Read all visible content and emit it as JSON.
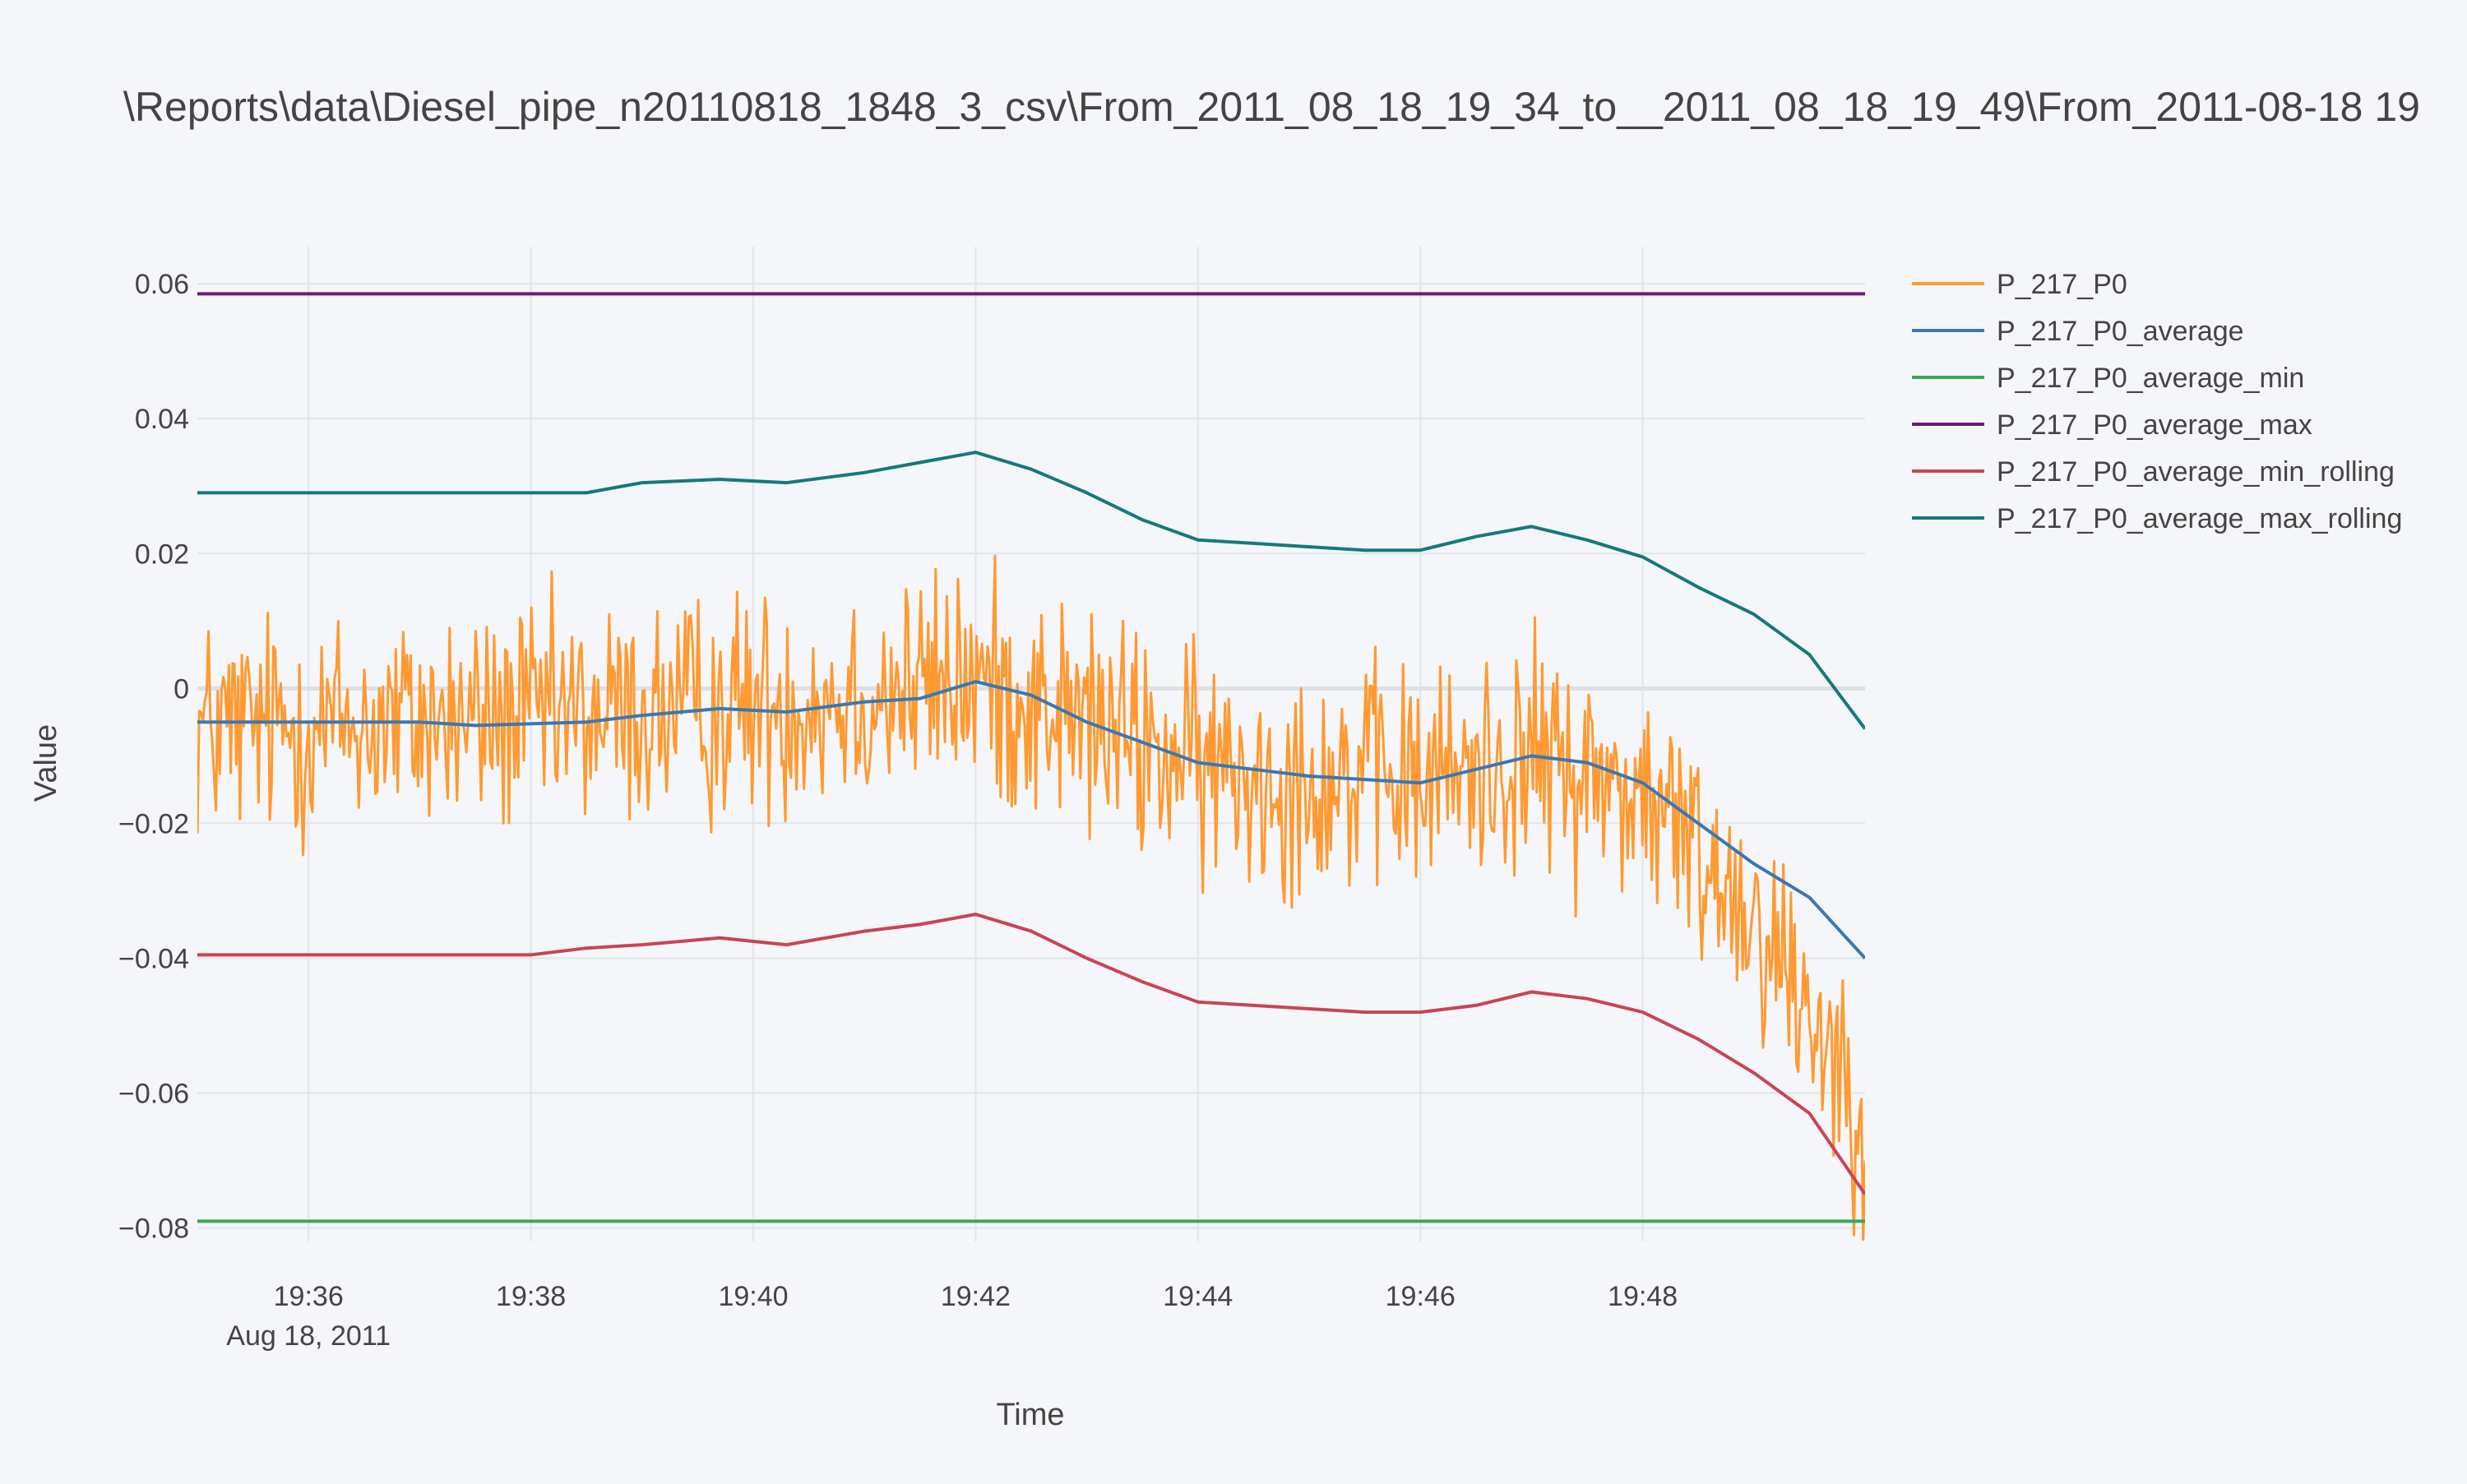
{
  "chart_data": {
    "type": "line",
    "title": "\\Reports\\data\\Diesel_pipe_n20110818_1848_3_csv\\From_2011_08_18_19_34_to__2011_08_18_19_49\\From_2011-08-18 19",
    "xlabel": "Time",
    "ylabel": "Value",
    "x_range": [
      "2011-08-18 19:35:00",
      "2011-08-18 19:50:00"
    ],
    "xlim_minutes": [
      "19:35",
      "19:50"
    ],
    "ylim": [
      -0.082,
      0.0655
    ],
    "x_ticks": [
      {
        "time": "19:36",
        "label": "19:36",
        "sublabel": "Aug 18, 2011"
      },
      {
        "time": "19:38",
        "label": "19:38"
      },
      {
        "time": "19:40",
        "label": "19:40"
      },
      {
        "time": "19:42",
        "label": "19:42"
      },
      {
        "time": "19:44",
        "label": "19:44"
      },
      {
        "time": "19:46",
        "label": "19:46"
      },
      {
        "time": "19:48",
        "label": "19:48"
      }
    ],
    "y_ticks": [
      {
        "value": 0.06,
        "label": "0.06"
      },
      {
        "value": 0.04,
        "label": "0.04"
      },
      {
        "value": 0.02,
        "label": "0.02"
      },
      {
        "value": 0,
        "label": "0"
      },
      {
        "value": -0.02,
        "label": "−0.02"
      },
      {
        "value": -0.04,
        "label": "−0.04"
      },
      {
        "value": -0.06,
        "label": "−0.06"
      },
      {
        "value": -0.08,
        "label": "−0.08"
      }
    ],
    "grid": true,
    "legend_position": "right",
    "series": [
      {
        "name": "P_217_P0",
        "color": "#ff9a32",
        "style": "noisy",
        "sample_count": 900,
        "noise_amplitude": 0.013,
        "trend": {
          "t": [
            "19:35",
            "19:37",
            "19:39",
            "19:41",
            "19:42",
            "19:43",
            "19:44",
            "19:45",
            "19:46",
            "19:47",
            "19:48",
            "19:49",
            "19:50"
          ],
          "y": [
            -0.006,
            -0.005,
            -0.004,
            -0.001,
            0.001,
            -0.005,
            -0.012,
            -0.013,
            -0.014,
            -0.01,
            -0.016,
            -0.033,
            -0.062
          ]
        }
      },
      {
        "name": "P_217_P0_average",
        "color": "#3a78b3",
        "t": [
          "19:35",
          "19:36",
          "19:37",
          "19:37.5",
          "19:38.5",
          "19:39",
          "19:39.7",
          "19:40.3",
          "19:41",
          "19:41.5",
          "19:42",
          "19:42.5",
          "19:43",
          "19:43.5",
          "19:44",
          "19:44.5",
          "19:45",
          "19:45.5",
          "19:46",
          "19:46.5",
          "19:47",
          "19:47.5",
          "19:48",
          "19:48.5",
          "19:49",
          "19:49.5",
          "19:50"
        ],
        "y": [
          -0.005,
          -0.005,
          -0.005,
          -0.0055,
          -0.005,
          -0.004,
          -0.003,
          -0.0035,
          -0.002,
          -0.0015,
          0.001,
          -0.001,
          -0.005,
          -0.008,
          -0.011,
          -0.012,
          -0.013,
          -0.0135,
          -0.014,
          -0.012,
          -0.01,
          -0.011,
          -0.014,
          -0.02,
          -0.026,
          -0.031,
          -0.04
        ]
      },
      {
        "name": "P_217_P0_average_min",
        "color": "#3aa65c",
        "t": [
          "19:35",
          "19:50"
        ],
        "y": [
          -0.079,
          -0.079
        ]
      },
      {
        "name": "P_217_P0_average_max",
        "color": "#6c1a78",
        "t": [
          "19:35",
          "19:50"
        ],
        "y": [
          0.0585,
          0.0585
        ]
      },
      {
        "name": "P_217_P0_average_min_rolling",
        "color": "#c94455",
        "t": [
          "19:35",
          "19:36",
          "19:37",
          "19:38",
          "19:38.5",
          "19:39",
          "19:39.7",
          "19:40.3",
          "19:41",
          "19:41.5",
          "19:42",
          "19:42.5",
          "19:43",
          "19:43.5",
          "19:44",
          "19:44.5",
          "19:45",
          "19:45.5",
          "19:46",
          "19:46.5",
          "19:47",
          "19:47.5",
          "19:48",
          "19:48.5",
          "19:49",
          "19:49.5",
          "19:50"
        ],
        "y": [
          -0.0395,
          -0.0395,
          -0.0395,
          -0.0395,
          -0.0385,
          -0.038,
          -0.037,
          -0.038,
          -0.036,
          -0.035,
          -0.0335,
          -0.036,
          -0.04,
          -0.0435,
          -0.0465,
          -0.047,
          -0.0475,
          -0.048,
          -0.048,
          -0.047,
          -0.045,
          -0.046,
          -0.048,
          -0.052,
          -0.057,
          -0.063,
          -0.075
        ]
      },
      {
        "name": "P_217_P0_average_max_rolling",
        "color": "#16797b",
        "t": [
          "19:35",
          "19:36",
          "19:37",
          "19:38",
          "19:38.5",
          "19:39",
          "19:39.7",
          "19:40.3",
          "19:41",
          "19:41.5",
          "19:42",
          "19:42.5",
          "19:43",
          "19:43.5",
          "19:44",
          "19:44.5",
          "19:45",
          "19:45.5",
          "19:46",
          "19:46.5",
          "19:47",
          "19:47.5",
          "19:48",
          "19:48.5",
          "19:49",
          "19:49.5",
          "19:50"
        ],
        "y": [
          0.029,
          0.029,
          0.029,
          0.029,
          0.029,
          0.0305,
          0.031,
          0.0305,
          0.032,
          0.0335,
          0.035,
          0.0325,
          0.029,
          0.025,
          0.022,
          0.0215,
          0.021,
          0.0205,
          0.0205,
          0.0225,
          0.024,
          0.022,
          0.0195,
          0.015,
          0.011,
          0.005,
          -0.006
        ]
      }
    ]
  }
}
